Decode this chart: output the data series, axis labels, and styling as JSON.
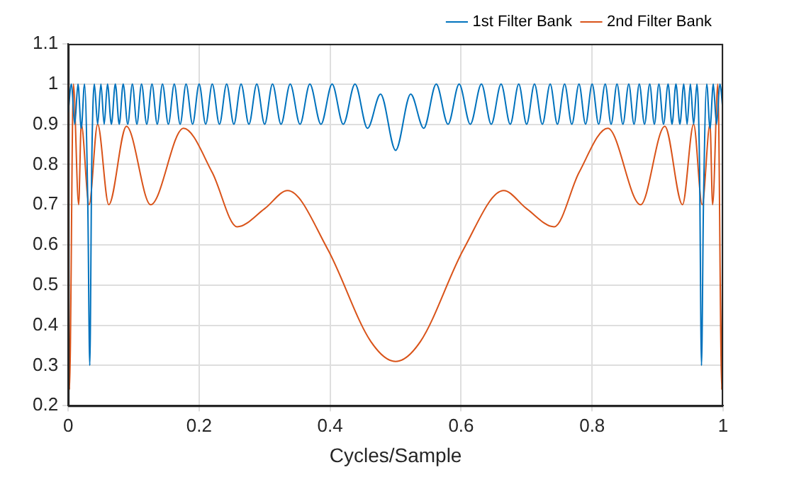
{
  "chart_data": {
    "type": "line",
    "xlabel": "Cycles/Sample",
    "xlim": [
      0,
      1
    ],
    "xticks": [
      0,
      0.2,
      0.4,
      0.6,
      0.8,
      1
    ],
    "ylim": [
      0.2,
      1.1
    ],
    "yticks": [
      0.2,
      0.3,
      0.4,
      0.5,
      0.6,
      0.7,
      0.8,
      0.9,
      1,
      1.1
    ],
    "grid": true,
    "legend": "top right",
    "marker": "none",
    "line_style": "solid",
    "series": [
      {
        "name": "1st Filter Bank",
        "color": "#0072bd",
        "x": [
          0,
          0.005,
          0.01,
          0.015,
          0.02,
          0.025,
          0.03,
          0.033,
          0.036,
          0.04,
          0.045,
          0.05,
          0.055,
          0.06,
          0.066,
          0.072,
          0.078,
          0.084,
          0.091,
          0.098,
          0.105,
          0.112,
          0.12,
          0.128,
          0.136,
          0.144,
          0.153,
          0.162,
          0.171,
          0.18,
          0.19,
          0.2,
          0.21,
          0.22,
          0.231,
          0.242,
          0.253,
          0.264,
          0.276,
          0.288,
          0.3,
          0.312,
          0.325,
          0.339,
          0.354,
          0.369,
          0.386,
          0.403,
          0.42,
          0.438,
          0.457,
          0.477,
          0.5,
          0.523,
          0.543,
          0.562,
          0.58,
          0.597,
          0.614,
          0.631,
          0.646,
          0.661,
          0.675,
          0.688,
          0.7,
          0.712,
          0.724,
          0.736,
          0.747,
          0.758,
          0.769,
          0.78,
          0.79,
          0.8,
          0.81,
          0.82,
          0.829,
          0.838,
          0.847,
          0.856,
          0.864,
          0.872,
          0.88,
          0.888,
          0.895,
          0.902,
          0.909,
          0.916,
          0.922,
          0.928,
          0.934,
          0.94,
          0.945,
          0.95,
          0.955,
          0.96,
          0.964,
          0.967,
          0.97,
          0.975,
          0.98,
          0.985,
          0.99,
          0.995,
          1
        ],
        "values": [
          0.93,
          1,
          0.9,
          1,
          0.89,
          1,
          0.7,
          0.3,
          0.8,
          1,
          0.9,
          1,
          0.9,
          1,
          0.9,
          1,
          0.9,
          1,
          0.9,
          1,
          0.9,
          1,
          0.9,
          1,
          0.9,
          1,
          0.9,
          1,
          0.9,
          1,
          0.9,
          1,
          0.9,
          1,
          0.9,
          1,
          0.9,
          1,
          0.9,
          1,
          0.9,
          1,
          0.9,
          1,
          0.9,
          1,
          0.9,
          1,
          0.9,
          1,
          0.89,
          0.975,
          0.835,
          0.975,
          0.89,
          1,
          0.9,
          1,
          0.9,
          1,
          0.9,
          1,
          0.9,
          1,
          0.9,
          1,
          0.9,
          1,
          0.9,
          1,
          0.9,
          1,
          0.9,
          1,
          0.9,
          1,
          0.9,
          1,
          0.9,
          1,
          0.9,
          1,
          0.9,
          1,
          0.9,
          1,
          0.9,
          1,
          0.9,
          1,
          0.9,
          1,
          0.9,
          1,
          0.9,
          1,
          0.8,
          0.3,
          0.7,
          1,
          0.89,
          1,
          0.9,
          1,
          0.93
        ]
      },
      {
        "name": "2nd Filter Bank",
        "color": "#d95319",
        "x": [
          0,
          0.002,
          0.008,
          0.016,
          0.02,
          0.032,
          0.045,
          0.062,
          0.089,
          0.126,
          0.176,
          0.22,
          0.258,
          0.3,
          0.335,
          0.396,
          0.462,
          0.5,
          0.538,
          0.604,
          0.665,
          0.7,
          0.742,
          0.78,
          0.824,
          0.874,
          0.911,
          0.938,
          0.955,
          0.968,
          0.98,
          0.984,
          0.992,
          0.998,
          1
        ],
        "values": [
          1,
          0.24,
          1,
          0.7,
          0.9,
          0.7,
          0.9,
          0.7,
          0.895,
          0.7,
          0.89,
          0.78,
          0.645,
          0.69,
          0.735,
          0.59,
          0.36,
          0.31,
          0.36,
          0.59,
          0.735,
          0.69,
          0.645,
          0.78,
          0.89,
          0.7,
          0.895,
          0.7,
          0.9,
          0.7,
          0.9,
          0.7,
          1,
          0.24,
          1
        ]
      }
    ]
  }
}
